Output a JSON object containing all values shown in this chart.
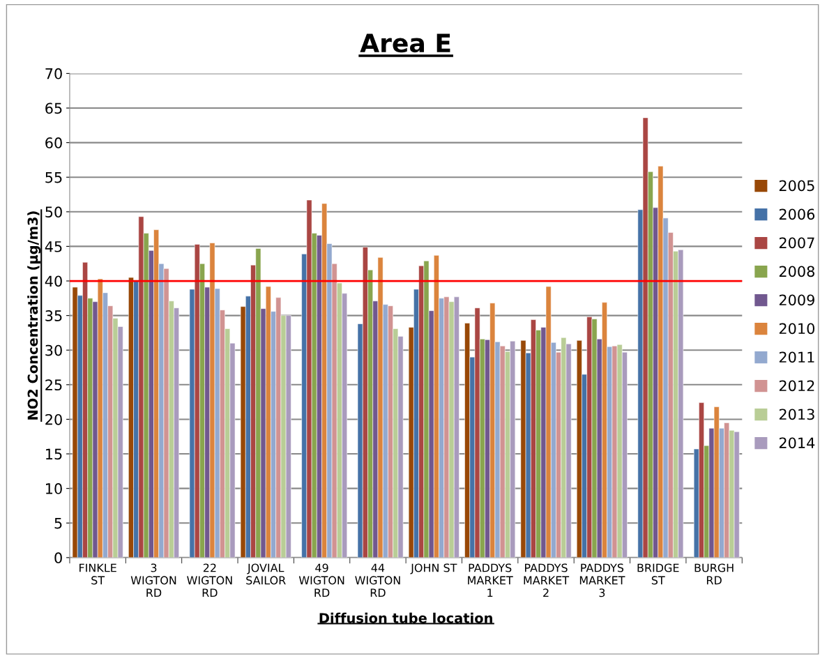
{
  "chart_data": {
    "type": "bar",
    "title": "Area E",
    "xlabel": "Diffusion tube location",
    "ylabel": "NO2 Concentration (µg/m3)",
    "categories": [
      "FINKLE\nST",
      "3\nWIGTON\nRD",
      "22\nWIGTON\nRD",
      "JOVIAL\nSAILOR",
      "49\nWIGTON\nRD",
      "44\nWIGTON\nRD",
      "JOHN ST",
      "PADDYS\nMARKET\n1",
      "PADDYS\nMARKET\n2",
      "PADDYS\nMARKET\n3",
      "BRIDGE\nST",
      "BURGH\nRD"
    ],
    "series": [
      {
        "name": "2005",
        "color": "#984807",
        "values": [
          39.1,
          40.5,
          null,
          36.3,
          null,
          null,
          33.3,
          33.9,
          31.4,
          31.4,
          null,
          null
        ]
      },
      {
        "name": "2006",
        "color": "#4572a7",
        "values": [
          37.9,
          40.0,
          38.8,
          37.8,
          43.9,
          33.8,
          38.8,
          29.0,
          29.6,
          26.5,
          50.3,
          15.7
        ]
      },
      {
        "name": "2007",
        "color": "#aa4643",
        "values": [
          42.7,
          49.3,
          45.3,
          42.3,
          51.7,
          44.9,
          42.2,
          36.1,
          34.4,
          34.8,
          63.6,
          22.4
        ]
      },
      {
        "name": "2008",
        "color": "#89a54e",
        "values": [
          37.5,
          46.9,
          42.5,
          44.7,
          46.9,
          41.6,
          42.9,
          31.6,
          32.9,
          34.5,
          55.8,
          16.2
        ]
      },
      {
        "name": "2009",
        "color": "#71588f",
        "values": [
          37.0,
          44.4,
          39.1,
          36.0,
          46.6,
          37.1,
          35.7,
          31.5,
          33.3,
          31.6,
          50.6,
          18.7
        ]
      },
      {
        "name": "2010",
        "color": "#db843d",
        "values": [
          40.3,
          47.4,
          45.5,
          39.2,
          51.2,
          43.4,
          43.7,
          36.8,
          39.2,
          36.9,
          56.6,
          21.8
        ]
      },
      {
        "name": "2011",
        "color": "#93a9cf",
        "values": [
          38.3,
          42.5,
          38.9,
          35.6,
          45.4,
          36.6,
          37.5,
          31.2,
          31.1,
          30.5,
          49.1,
          18.7
        ]
      },
      {
        "name": "2012",
        "color": "#d19392",
        "values": [
          36.4,
          41.8,
          35.8,
          37.6,
          42.5,
          36.4,
          37.7,
          30.6,
          29.7,
          30.6,
          47.0,
          19.5
        ]
      },
      {
        "name": "2013",
        "color": "#b9cd96",
        "values": [
          34.6,
          37.1,
          33.1,
          35.0,
          39.7,
          33.1,
          37.0,
          29.8,
          31.8,
          30.8,
          44.3,
          18.4
        ]
      },
      {
        "name": "2014",
        "color": "#a99bbd",
        "values": [
          33.4,
          36.1,
          31.0,
          35.0,
          38.2,
          32.0,
          37.7,
          31.3,
          30.9,
          29.7,
          44.5,
          18.2
        ]
      }
    ],
    "ylim": [
      0,
      70
    ],
    "yticks": [
      0,
      5,
      10,
      15,
      20,
      25,
      30,
      35,
      40,
      45,
      50,
      55,
      60,
      65,
      70
    ],
    "grid": "y",
    "legend": "right",
    "ref_lines": [
      {
        "axis": "y",
        "value": 40,
        "color": "#ff0000"
      }
    ]
  }
}
